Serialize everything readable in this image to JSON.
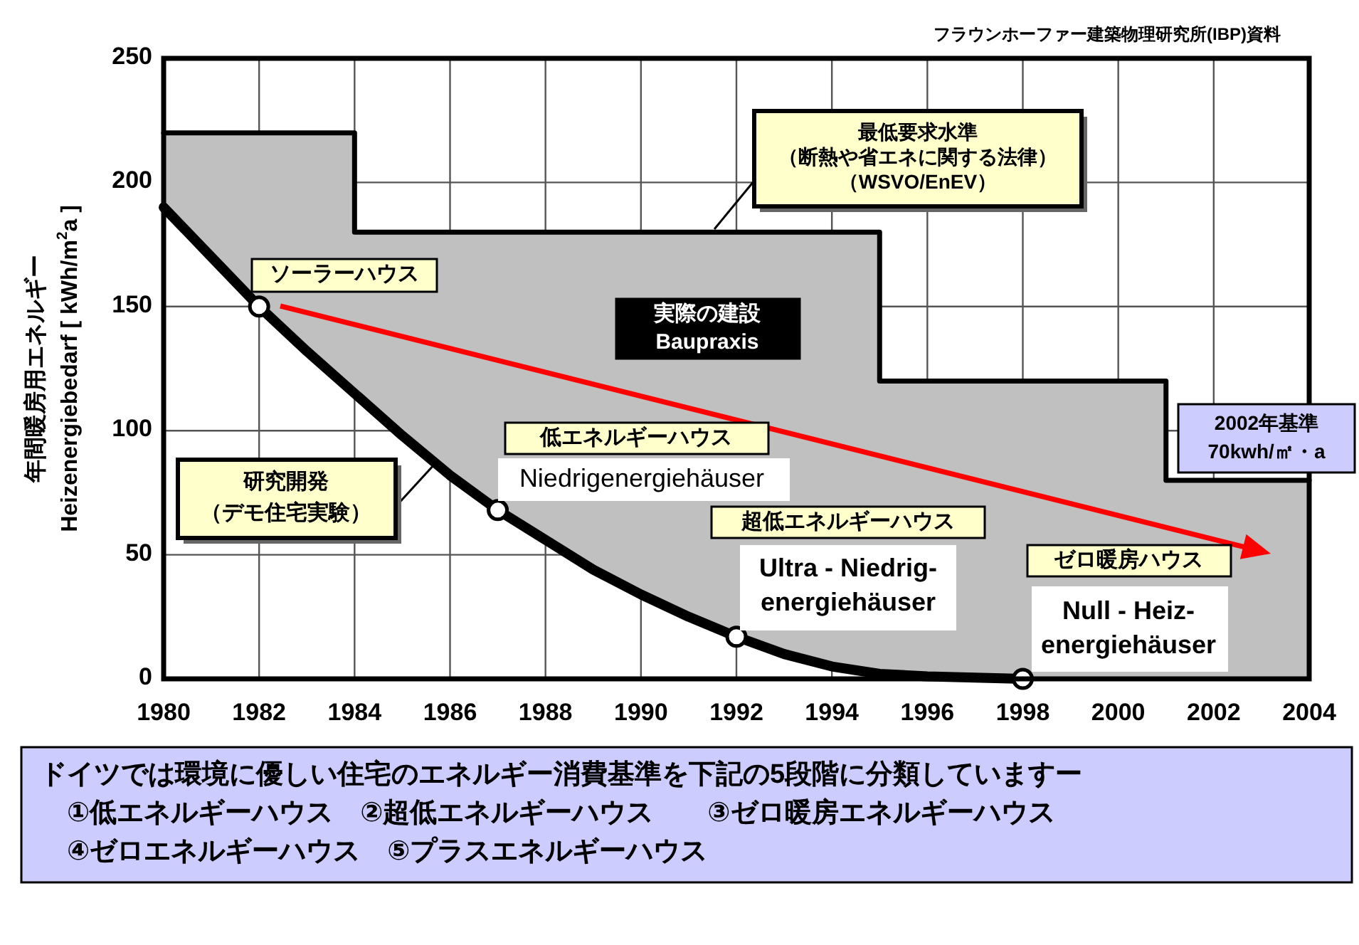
{
  "chart_data": {
    "type": "line",
    "ylabel": "年間暖房用エネルギー\nHeizenergiebedarf [ kWh/m$^{2}$a ]",
    "xlim": [
      1980,
      2004
    ],
    "xticks": [
      1980,
      1982,
      1984,
      1986,
      1988,
      1990,
      1992,
      1994,
      1996,
      1998,
      2000,
      2002,
      2004
    ],
    "ylim": [
      0,
      250
    ],
    "yticks": [
      0,
      50,
      100,
      150,
      200,
      250
    ],
    "grid": true,
    "series": [
      {
        "type": "line",
        "color": "#000000",
        "x": [
          1980,
          1981,
          1982,
          1983,
          1984,
          1984,
          1985,
          1986,
          1987,
          1988,
          1989,
          1990,
          1991,
          1992,
          1993,
          1994,
          1995,
          1995,
          1996,
          1997,
          1998,
          1999,
          2000,
          2001,
          2001,
          2002,
          2003,
          2004
        ],
        "values": [
          220,
          220,
          220,
          220,
          220,
          180,
          180,
          180,
          180,
          180,
          180,
          180,
          180,
          180,
          180,
          180,
          180,
          120,
          120,
          120,
          120,
          120,
          120,
          120,
          80,
          80,
          80,
          80
        ],
        "lower": [
          190,
          170,
          150,
          132,
          115,
          115,
          98,
          82,
          68,
          56,
          44,
          34,
          25,
          17,
          10,
          5,
          2,
          2,
          1,
          0.5,
          0,
          0,
          0,
          0,
          0,
          0,
          0,
          0
        ],
        "upper": [
          220,
          220,
          220,
          220,
          220,
          180,
          180,
          180,
          180,
          180,
          180,
          180,
          180,
          180,
          180,
          180,
          180,
          120,
          120,
          120,
          120,
          120,
          120,
          120,
          80,
          80,
          80,
          80
        ]
      },
      {
        "color": "#000000",
        "x": [
          1980,
          1981,
          1982,
          1983,
          1984,
          1985,
          1986,
          1987,
          1988,
          1989,
          1990,
          1991,
          1992,
          1993,
          1994,
          1995,
          1996,
          1997,
          1998
        ],
        "values": [
          190,
          170,
          150,
          132,
          115,
          98,
          82,
          68,
          56,
          44,
          34,
          25,
          17,
          10,
          5,
          2,
          1,
          0.5,
          0
        ]
      },
      {
        "type": "scatter",
        "color": "#ffffff",
        "x": [
          1982,
          1987,
          1992,
          1998
        ],
        "values": [
          150,
          68,
          17,
          0
        ]
      }
    ],
    "annotations": [
      "フラウンホーファー建築物理研究所(IBP)資料",
      "最低要求水準（断熱や省エネに関する法律）（WSVO/EnEV）",
      "実際の建設\nBaupraxis",
      "ソーラーハウス",
      {
        "text": "研究開発（デモ住宅実験）",
        "x": 1985.7,
        "y": 87
      },
      "低エネルギーハウス",
      "Niedrigenergiehäuser",
      "超低エネルギーハウス",
      "Ultra -  Niedrig-\nenergiehäuser",
      "ゼロ暖房ハウス",
      "Null - Heiz-\nenergiehäuser",
      "2002年基準70kwh/㎡・a",
      "ドイツでは環境に優しい住宅のエネルギー消費基準を下記の5段階に分類していますー\n　①低エネルギーハウス　②超低エネルギーハウス　　③ゼロ暖房エネルギーハウス\n　④ゼロエネルギーハウス　⑤プラスエネルギーハウス"
    ]
  }
}
